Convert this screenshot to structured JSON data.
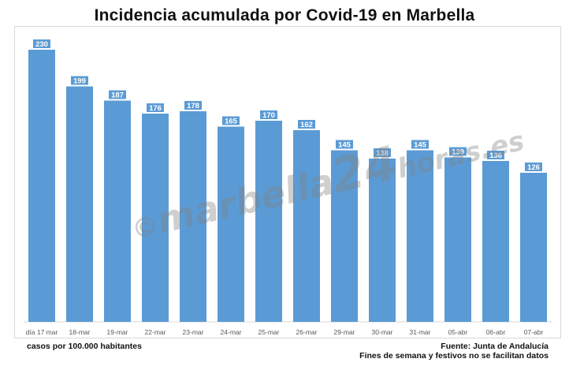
{
  "chart_data": {
    "type": "bar",
    "title": "Incidencia acumulada por Covid-19 en Marbella",
    "categories": [
      "día 17 mar",
      "18-mar",
      "19-mar",
      "22-mar",
      "23-mar",
      "24-mar",
      "25-mar",
      "26-mar",
      "29-mar",
      "30-mar",
      "31-mar",
      "05-abr",
      "06-abr",
      "07-abr"
    ],
    "values": [
      230,
      199,
      187,
      176,
      178,
      165,
      170,
      162,
      145,
      138,
      145,
      139,
      136,
      126
    ],
    "ylim": [
      0,
      240
    ],
    "grid": false,
    "bar_color": "#5b9bd5",
    "label_bg": "#5b9bd5",
    "label_color": "#ffffff"
  },
  "notes": {
    "units": "casos por 100.000 habitantes",
    "source": "Fuente: Junta de Andalucía",
    "disclaimer": "Fines de semana y festivos no se facilitan datos"
  },
  "watermark": {
    "copyright": "©",
    "brand": "marbella",
    "number": "24",
    "suffix": "horas.es"
  }
}
